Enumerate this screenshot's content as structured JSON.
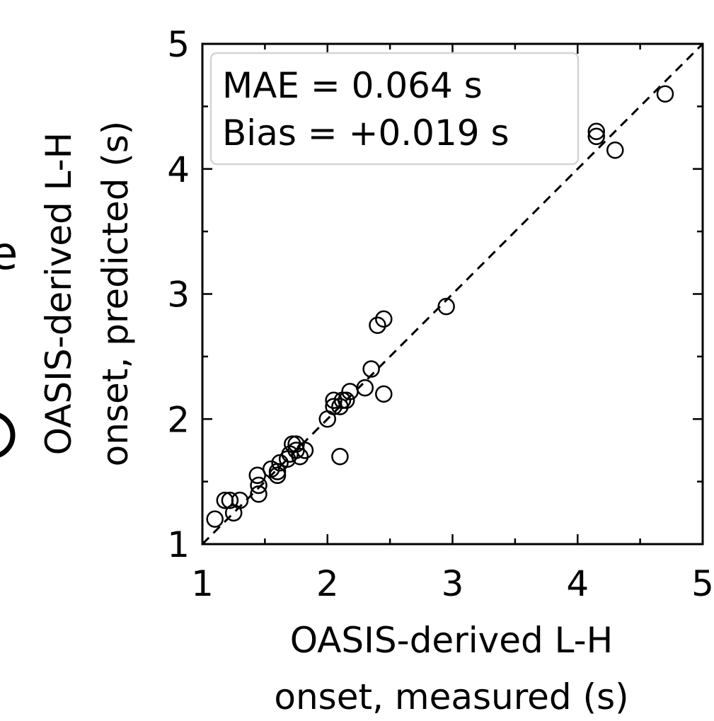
{
  "panel_letters": [
    "e"
  ],
  "chart_data": {
    "type": "scatter",
    "xlabel_lines": [
      "OASIS-derived L-H",
      "onset, measured (s)"
    ],
    "ylabel_lines": [
      "OASIS-derived L-H",
      "onset, predicted (s)"
    ],
    "xlim": [
      1,
      5
    ],
    "ylim": [
      1,
      5
    ],
    "xticks": [
      "1",
      "2",
      "3",
      "4",
      "5"
    ],
    "yticks": [
      "1",
      "2",
      "3",
      "4",
      "5"
    ],
    "grid": false,
    "identity_line": true,
    "marker": "open-circle",
    "stats": [
      "MAE = 0.064 s",
      "Bias = +0.019 s"
    ],
    "stats_position": "top-left",
    "points": [
      {
        "x": 1.1,
        "y": 1.2
      },
      {
        "x": 1.18,
        "y": 1.35
      },
      {
        "x": 1.22,
        "y": 1.35
      },
      {
        "x": 1.25,
        "y": 1.25
      },
      {
        "x": 1.3,
        "y": 1.35
      },
      {
        "x": 1.45,
        "y": 1.4
      },
      {
        "x": 1.45,
        "y": 1.47
      },
      {
        "x": 1.44,
        "y": 1.55
      },
      {
        "x": 1.55,
        "y": 1.6
      },
      {
        "x": 1.6,
        "y": 1.58
      },
      {
        "x": 1.62,
        "y": 1.65
      },
      {
        "x": 1.6,
        "y": 1.55
      },
      {
        "x": 1.68,
        "y": 1.68
      },
      {
        "x": 1.7,
        "y": 1.72
      },
      {
        "x": 1.72,
        "y": 1.8
      },
      {
        "x": 1.75,
        "y": 1.75
      },
      {
        "x": 1.78,
        "y": 1.7
      },
      {
        "x": 1.75,
        "y": 1.8
      },
      {
        "x": 1.82,
        "y": 1.75
      },
      {
        "x": 2.0,
        "y": 2.0
      },
      {
        "x": 2.05,
        "y": 2.1
      },
      {
        "x": 2.05,
        "y": 2.15
      },
      {
        "x": 2.1,
        "y": 2.1
      },
      {
        "x": 2.12,
        "y": 2.15
      },
      {
        "x": 2.15,
        "y": 2.15
      },
      {
        "x": 2.18,
        "y": 2.22
      },
      {
        "x": 2.1,
        "y": 1.7
      },
      {
        "x": 2.3,
        "y": 2.25
      },
      {
        "x": 2.35,
        "y": 2.4
      },
      {
        "x": 2.45,
        "y": 2.2
      },
      {
        "x": 2.4,
        "y": 2.75
      },
      {
        "x": 2.45,
        "y": 2.8
      },
      {
        "x": 2.95,
        "y": 2.9
      },
      {
        "x": 4.15,
        "y": 4.3
      },
      {
        "x": 4.15,
        "y": 4.26
      },
      {
        "x": 4.3,
        "y": 4.15
      },
      {
        "x": 4.7,
        "y": 4.6
      }
    ]
  }
}
